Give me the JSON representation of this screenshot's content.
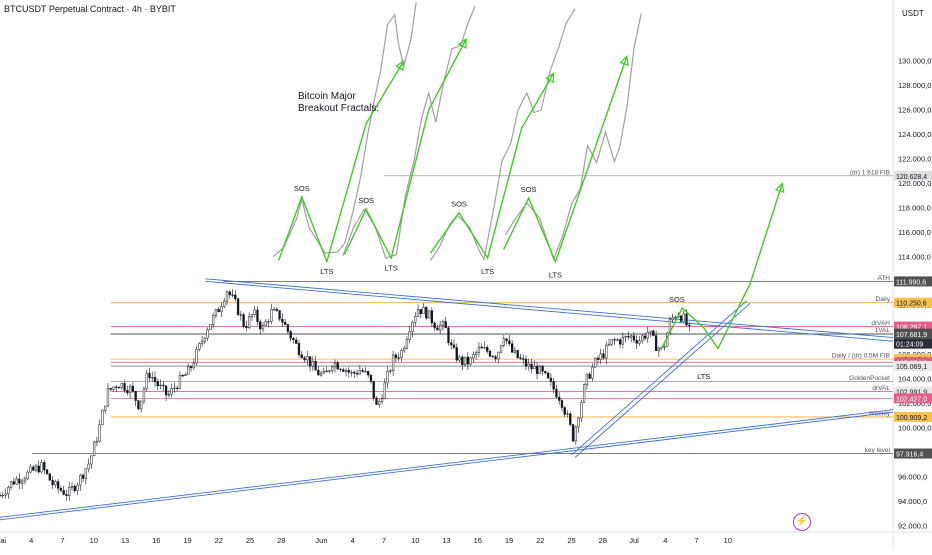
{
  "header": {
    "title": "BTCUSDT Perpetual Contract · 4h · BYBIT",
    "currency": "USDT"
  },
  "annotation": {
    "line1": "Bitcoin Major",
    "line2": "Breakout Fractals:"
  },
  "logo_icon": "lightning-bolt-icon",
  "colors": {
    "up": "#131722",
    "down": "#131722",
    "green": "#3ccf1f",
    "blue": "#3d6fd8",
    "pink": "#e0608a",
    "orange": "#f0a830",
    "gray": "#787b86",
    "fractal": "#a0a0a0"
  },
  "chart_data": {
    "type": "candlestick",
    "ylim": [
      91500,
      135000
    ],
    "x_range": [
      0,
      50
    ],
    "x_ticks": [
      {
        "label": "Mai",
        "x": 0
      },
      {
        "label": "4",
        "x": 1.75
      },
      {
        "label": "7",
        "x": 3.5
      },
      {
        "label": "10",
        "x": 5.25
      },
      {
        "label": "13",
        "x": 7
      },
      {
        "label": "16",
        "x": 8.75
      },
      {
        "label": "19",
        "x": 10.5
      },
      {
        "label": "22",
        "x": 12.25
      },
      {
        "label": "25",
        "x": 14
      },
      {
        "label": "28",
        "x": 15.75
      },
      {
        "label": "Jun",
        "x": 18
      },
      {
        "label": "4",
        "x": 19.75
      },
      {
        "label": "7",
        "x": 21.5
      },
      {
        "label": "10",
        "x": 23.25
      },
      {
        "label": "13",
        "x": 25
      },
      {
        "label": "16",
        "x": 26.75
      },
      {
        "label": "19",
        "x": 28.5
      },
      {
        "label": "22",
        "x": 30.25
      },
      {
        "label": "25",
        "x": 32
      },
      {
        "label": "28",
        "x": 33.75
      },
      {
        "label": "Jul",
        "x": 35.5
      },
      {
        "label": "4",
        "x": 37.25
      },
      {
        "label": "7",
        "x": 39
      },
      {
        "label": "10",
        "x": 40.75
      }
    ],
    "y_ticks": [
      92000,
      94000,
      96000,
      98000,
      100000,
      102000,
      104000,
      106000,
      108000,
      110000,
      112000,
      114000,
      116000,
      118000,
      120000,
      122000,
      124000,
      126000,
      128000,
      130000
    ],
    "y_tick_labels": [
      "92.000,0",
      "94.000,0",
      "96.000,0",
      "98.000,0",
      "100.000,0",
      "102.000,0",
      "104.000,0",
      "106.000,0",
      "108.000,0",
      "110.000,0",
      "112.000,0",
      "114.000,0",
      "116.000,0",
      "118.000,0",
      "120.000,0",
      "122.000,0",
      "124.000,0",
      "126.000,0",
      "128.000,0",
      "130.000,0"
    ],
    "price_path": [
      [
        0,
        94500
      ],
      [
        0.7,
        95600
      ],
      [
        1.5,
        96200
      ],
      [
        2.3,
        96900
      ],
      [
        3,
        95300
      ],
      [
        3.8,
        94600
      ],
      [
        4.4,
        95700
      ],
      [
        5,
        97200
      ],
      [
        5.5,
        99600
      ],
      [
        6,
        102900
      ],
      [
        6.6,
        103700
      ],
      [
        7.3,
        103200
      ],
      [
        7.8,
        101800
      ],
      [
        8.3,
        104600
      ],
      [
        8.9,
        103400
      ],
      [
        9.4,
        102600
      ],
      [
        9.9,
        103600
      ],
      [
        10.6,
        104700
      ],
      [
        11.1,
        106400
      ],
      [
        11.6,
        108200
      ],
      [
        12.2,
        109600
      ],
      [
        12.7,
        111300
      ],
      [
        13.2,
        110100
      ],
      [
        13.7,
        108300
      ],
      [
        14.2,
        109400
      ],
      [
        14.7,
        108100
      ],
      [
        15.2,
        109500
      ],
      [
        15.7,
        109100
      ],
      [
        16.2,
        107700
      ],
      [
        16.7,
        106500
      ],
      [
        17.2,
        105700
      ],
      [
        17.7,
        104600
      ],
      [
        18.2,
        104200
      ],
      [
        18.6,
        105400
      ],
      [
        19.2,
        105000
      ],
      [
        19.7,
        104400
      ],
      [
        20.2,
        104800
      ],
      [
        20.7,
        104000
      ],
      [
        21.1,
        101600
      ],
      [
        21.5,
        103300
      ],
      [
        22,
        105600
      ],
      [
        22.5,
        106300
      ],
      [
        23,
        108600
      ],
      [
        23.4,
        109800
      ],
      [
        23.9,
        109400
      ],
      [
        24.4,
        108400
      ],
      [
        24.9,
        108300
      ],
      [
        25.3,
        106400
      ],
      [
        25.8,
        105400
      ],
      [
        26.3,
        105400
      ],
      [
        26.8,
        106400
      ],
      [
        27.3,
        106300
      ],
      [
        27.8,
        105900
      ],
      [
        28.2,
        107700
      ],
      [
        28.6,
        106300
      ],
      [
        29.1,
        105600
      ],
      [
        29.6,
        105000
      ],
      [
        30.1,
        104800
      ],
      [
        30.5,
        104200
      ],
      [
        31,
        103200
      ],
      [
        31.4,
        102400
      ],
      [
        31.8,
        100700
      ],
      [
        32.1,
        99200
      ],
      [
        32.4,
        101300
      ],
      [
        32.8,
        103800
      ],
      [
        33.3,
        105300
      ],
      [
        33.8,
        106100
      ],
      [
        34.3,
        107100
      ],
      [
        34.8,
        107200
      ],
      [
        35.3,
        107500
      ],
      [
        35.8,
        107200
      ],
      [
        36.3,
        107900
      ],
      [
        36.7,
        106800
      ],
      [
        37.1,
        106300
      ],
      [
        37.5,
        108600
      ],
      [
        37.9,
        109500
      ],
      [
        38.3,
        108900
      ],
      [
        38.7,
        107600
      ]
    ],
    "levels": [
      {
        "value": 120628.4,
        "label": "(dr) 1.618 FIB",
        "tag": "120.628,4",
        "color": "#a0a0a0",
        "tag_bg": "#e0e0e0",
        "tag_fg": "#131722"
      },
      {
        "value": 111990.6,
        "label": "ATH",
        "tag": "111.990,6",
        "color": "#505050",
        "tag_bg": "#505050",
        "tag_fg": "#ffffff"
      },
      {
        "value": 110250.6,
        "label": "Daily",
        "tag": "110.250,6",
        "color": "#f0a830",
        "tag_bg": "#f5c250",
        "tag_fg": "#131722"
      },
      {
        "value": 108297.1,
        "label": "drVAH",
        "tag": "108.297,1",
        "color": "#e0608a",
        "tag_bg": "#e0608a",
        "tag_fg": "#ffffff"
      },
      {
        "value": 107711.6,
        "label": "1VAL",
        "tag": "107.711,6",
        "color": "#8090b0",
        "tag_bg": "#2a2e39",
        "tag_fg": "#ffffff"
      },
      {
        "value": 106900,
        "label": "",
        "tag": "01:24:09",
        "color": "none",
        "tag_bg": "#2a2e39",
        "tag_fg": "#ffffff"
      },
      {
        "value": 107681.9,
        "label": "",
        "tag": "107.681,9",
        "color": "#505050",
        "tag_bg": "#505050",
        "tag_fg": "#ffffff"
      },
      {
        "value": 105635.6,
        "label": "Daily / (dr) 0.5M FIB",
        "tag": "105.635,6",
        "color": "#f0a830",
        "tag_bg": "#f5c250",
        "tag_fg": "#131722"
      },
      {
        "value": 105374.0,
        "label": "",
        "tag": "105.374,0",
        "color": "#e0608a",
        "tag_bg": "#e0608a",
        "tag_fg": "#ffffff"
      },
      {
        "value": 105069.1,
        "label": "",
        "tag": "105.069,1",
        "color": "#787b86",
        "tag_bg": "#e8e8e8",
        "tag_fg": "#131722"
      },
      {
        "value": 103800,
        "label": "GoldenPocket",
        "tag": "",
        "color": "#a0a0a0",
        "tag_bg": "",
        "tag_fg": ""
      },
      {
        "value": 102991.9,
        "label": "drVAL",
        "tag": "102.991,9",
        "color": "#e0608a",
        "tag_bg": "#e8e8e8",
        "tag_fg": "#131722"
      },
      {
        "value": 102427.0,
        "label": "",
        "tag": "102.427,0",
        "color": "#e0608a",
        "tag_bg": "#e0608a",
        "tag_fg": "#ffffff"
      },
      {
        "value": 100909.2,
        "label": "Weekly",
        "tag": "100.909,2",
        "color": "#f0a830",
        "tag_bg": "#f5c250",
        "tag_fg": "#131722"
      },
      {
        "value": 97916.4,
        "label": "key level",
        "tag": "97.916,4",
        "color": "#505050",
        "tag_bg": "#505050",
        "tag_fg": "#ffffff"
      }
    ],
    "trendlines": [
      {
        "from": [
          11.5,
          112200
        ],
        "to": [
          50,
          107400
        ],
        "color": "#3d6fd8"
      },
      {
        "from": [
          11.5,
          112000
        ],
        "to": [
          50,
          107100
        ],
        "color": "#3d6fd8"
      },
      {
        "from": [
          0,
          92700
        ],
        "to": [
          50,
          101500
        ],
        "color": "#3d6fd8"
      },
      {
        "from": [
          0,
          92500
        ],
        "to": [
          50,
          101300
        ],
        "color": "#3d6fd8"
      },
      {
        "from": [
          32,
          97800
        ],
        "to": [
          41.8,
          110400
        ],
        "color": "#3d6fd8"
      },
      {
        "from": [
          32.2,
          97600
        ],
        "to": [
          42,
          110200
        ],
        "color": "#3d6fd8"
      }
    ],
    "projection": [
      [
        37,
        106400
      ],
      [
        38.2,
        109800
      ],
      [
        39.4,
        108200
      ],
      [
        40.2,
        106500
      ],
      [
        42,
        111800
      ],
      [
        43.8,
        120000
      ]
    ],
    "fractals": [
      {
        "gray": [
          [
            15.3,
            114000
          ],
          [
            15.9,
            114800
          ],
          [
            16.6,
            117100
          ],
          [
            16.9,
            118700
          ],
          [
            17.3,
            116400
          ],
          [
            18.2,
            114300
          ],
          [
            18.9,
            114400
          ],
          [
            19.3,
            115100
          ],
          [
            19.8,
            117900
          ],
          [
            20.2,
            120600
          ],
          [
            20.6,
            124100
          ],
          [
            21,
            127100
          ],
          [
            21.3,
            129100
          ],
          [
            21.7,
            133000
          ],
          [
            22.1,
            133800
          ],
          [
            22.3,
            131500
          ],
          [
            22.6,
            129600
          ],
          [
            23,
            131700
          ],
          [
            23.3,
            134800
          ]
        ],
        "green": [
          [
            15.6,
            113700
          ],
          [
            16.9,
            118900
          ],
          [
            18.3,
            113600
          ],
          [
            20.5,
            124900
          ],
          [
            22.6,
            130000
          ]
        ],
        "sos": [
          16.9,
          118900
        ],
        "lts": [
          18.3,
          113600
        ]
      },
      {
        "gray": [
          [
            19.2,
            114100
          ],
          [
            19.8,
            116400
          ],
          [
            20.4,
            117900
          ],
          [
            21,
            116500
          ],
          [
            21.6,
            113900
          ],
          [
            22.2,
            114200
          ],
          [
            22.7,
            119000
          ],
          [
            23.2,
            122000
          ],
          [
            23.6,
            125300
          ],
          [
            24,
            127400
          ],
          [
            24.4,
            125000
          ],
          [
            24.8,
            128000
          ],
          [
            25.3,
            131000
          ],
          [
            25.8,
            131300
          ],
          [
            26.2,
            133100
          ],
          [
            26.6,
            134500
          ]
        ],
        "green": [
          [
            19.3,
            114200
          ],
          [
            20.5,
            117900
          ],
          [
            21.9,
            113900
          ],
          [
            24,
            126000
          ],
          [
            26.1,
            131800
          ]
        ],
        "sos": [
          20.5,
          117900
        ],
        "lts": [
          21.9,
          113900
        ]
      },
      {
        "gray": [
          [
            24.1,
            113700
          ],
          [
            24.6,
            114800
          ],
          [
            25.2,
            116700
          ],
          [
            25.6,
            117400
          ],
          [
            26.3,
            116400
          ],
          [
            26.8,
            114600
          ],
          [
            27.1,
            113800
          ],
          [
            27.7,
            118400
          ],
          [
            28.1,
            121800
          ],
          [
            28.6,
            123300
          ],
          [
            29,
            126000
          ],
          [
            29.5,
            127400
          ],
          [
            29.9,
            125800
          ],
          [
            30.3,
            126000
          ],
          [
            30.8,
            129200
          ],
          [
            31.3,
            131200
          ],
          [
            31.7,
            133100
          ],
          [
            32.2,
            134300
          ]
        ],
        "green": [
          [
            24.1,
            114300
          ],
          [
            25.7,
            117600
          ],
          [
            27.3,
            113900
          ],
          [
            29.2,
            124500
          ],
          [
            31,
            129000
          ]
        ],
        "sos": [
          25.7,
          117600
        ],
        "lts": [
          27.3,
          113900
        ]
      },
      {
        "gray": [
          [
            28.3,
            115800
          ],
          [
            28.8,
            117000
          ],
          [
            29.5,
            118400
          ],
          [
            30.2,
            117200
          ],
          [
            30.7,
            115100
          ],
          [
            31,
            113800
          ],
          [
            31.5,
            115700
          ],
          [
            32,
            118300
          ],
          [
            32.5,
            119600
          ],
          [
            32.9,
            123100
          ],
          [
            33.4,
            121700
          ],
          [
            33.9,
            124200
          ],
          [
            34.4,
            121800
          ],
          [
            34.7,
            123000
          ],
          [
            35.1,
            126200
          ],
          [
            35.5,
            131100
          ],
          [
            35.9,
            133900
          ]
        ],
        "green": [
          [
            28.2,
            114600
          ],
          [
            29.6,
            118800
          ],
          [
            31.1,
            113600
          ],
          [
            35.1,
            130400
          ]
        ],
        "sos": [
          29.6,
          118800
        ],
        "lts": [
          31.1,
          113600
        ]
      }
    ],
    "labels": [
      {
        "text": "SOS",
        "x": 16.9,
        "y": 119400
      },
      {
        "text": "LTS",
        "x": 18.3,
        "y": 112600
      },
      {
        "text": "SOS",
        "x": 20.5,
        "y": 118400
      },
      {
        "text": "LTS",
        "x": 21.9,
        "y": 112900
      },
      {
        "text": "SOS",
        "x": 25.7,
        "y": 118100
      },
      {
        "text": "LTS",
        "x": 27.3,
        "y": 112600
      },
      {
        "text": "SOS",
        "x": 29.6,
        "y": 119300
      },
      {
        "text": "LTS",
        "x": 31.1,
        "y": 112300
      },
      {
        "text": "SOS",
        "x": 37.9,
        "y": 110300
      },
      {
        "text": "LTS",
        "x": 39.4,
        "y": 104000
      }
    ]
  }
}
